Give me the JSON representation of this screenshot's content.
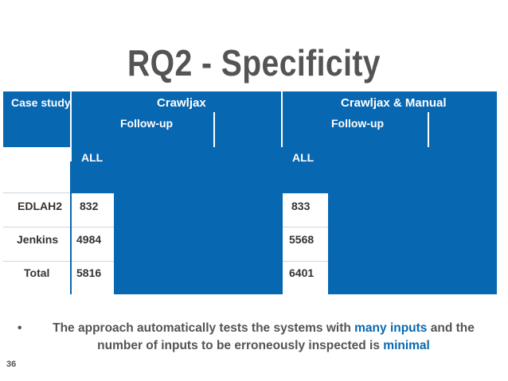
{
  "slide": {
    "title": "RQ2 - Specificity",
    "page_number": "36"
  },
  "table": {
    "col_case": "Case study",
    "group1": "Crawljax",
    "group2": "Crawljax & Manual",
    "followup1": "Follow-up",
    "followup2": "Follow-up",
    "all1": "ALL",
    "all2": "ALL",
    "rows": [
      {
        "case": "EDLAH2",
        "v1": "832",
        "v2": "833"
      },
      {
        "case": "Jenkins",
        "v1": "4984",
        "v2": "5568"
      },
      {
        "case": "Total",
        "v1": "5816",
        "v2": "6401"
      }
    ]
  },
  "bullet": {
    "part1": "The approach automatically tests the systems with ",
    "hl1": "many inputs",
    "part2": " and the number of inputs to be erroneously  inspected is ",
    "hl2": "minimal"
  },
  "colors": {
    "table_blue": "#0867b1",
    "text_gray": "#545454",
    "highlight": "#0867b1"
  }
}
